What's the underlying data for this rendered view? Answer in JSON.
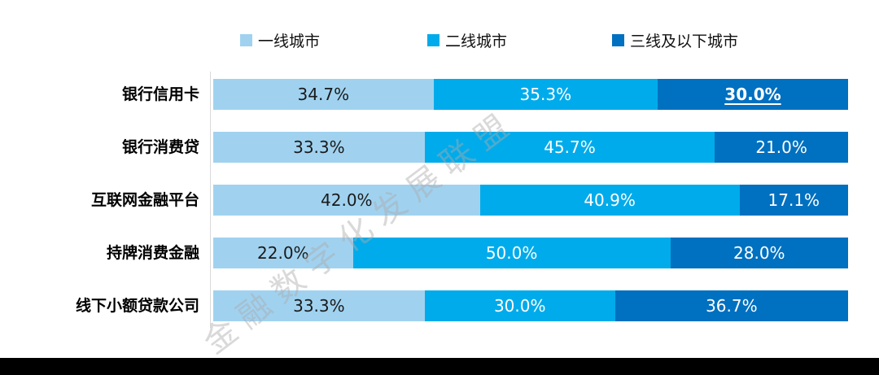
{
  "legend": {
    "items": [
      {
        "label": "一线城市",
        "color": "#A0D2F0"
      },
      {
        "label": "二线城市",
        "color": "#00ABEB"
      },
      {
        "label": "三线及以下城市",
        "color": "#0070C0"
      }
    ]
  },
  "chart_data": {
    "type": "bar",
    "variant": "horizontal-stacked",
    "categories": [
      "银行信用卡",
      "银行消费贷",
      "互联网金融平台",
      "持牌消费金融",
      "线下小额贷款公司"
    ],
    "series": [
      {
        "name": "一线城市",
        "color": "#A0D2F0",
        "values": [
          34.7,
          33.3,
          42.0,
          22.0,
          33.3
        ]
      },
      {
        "name": "二线城市",
        "color": "#00ABEB",
        "values": [
          35.3,
          45.7,
          40.9,
          50.0,
          30.0
        ]
      },
      {
        "name": "三线及以下城市",
        "color": "#0070C0",
        "values": [
          30.0,
          21.0,
          17.1,
          28.0,
          36.7
        ]
      }
    ],
    "value_labels": [
      [
        "34.7%",
        "35.3%",
        "30.0%"
      ],
      [
        "33.3%",
        "45.7%",
        "21.0%"
      ],
      [
        "42.0%",
        "40.9%",
        "17.1%"
      ],
      [
        "22.0%",
        "50.0%",
        "28.0%"
      ],
      [
        "33.3%",
        "30.0%",
        "36.7%"
      ]
    ],
    "highlight": {
      "category_index": 0,
      "series_index": 2,
      "style": "bold-underline",
      "label": "30.0%"
    },
    "xlim": [
      0,
      100
    ],
    "legend_position": "top",
    "grid": false,
    "label_text_colors": {
      "series1": "#1a1a1a",
      "series2": "#ffffff",
      "series3": "#ffffff"
    }
  },
  "watermark": {
    "text": "金融数字化发展联盟"
  },
  "footer": {
    "color": "#000000"
  }
}
